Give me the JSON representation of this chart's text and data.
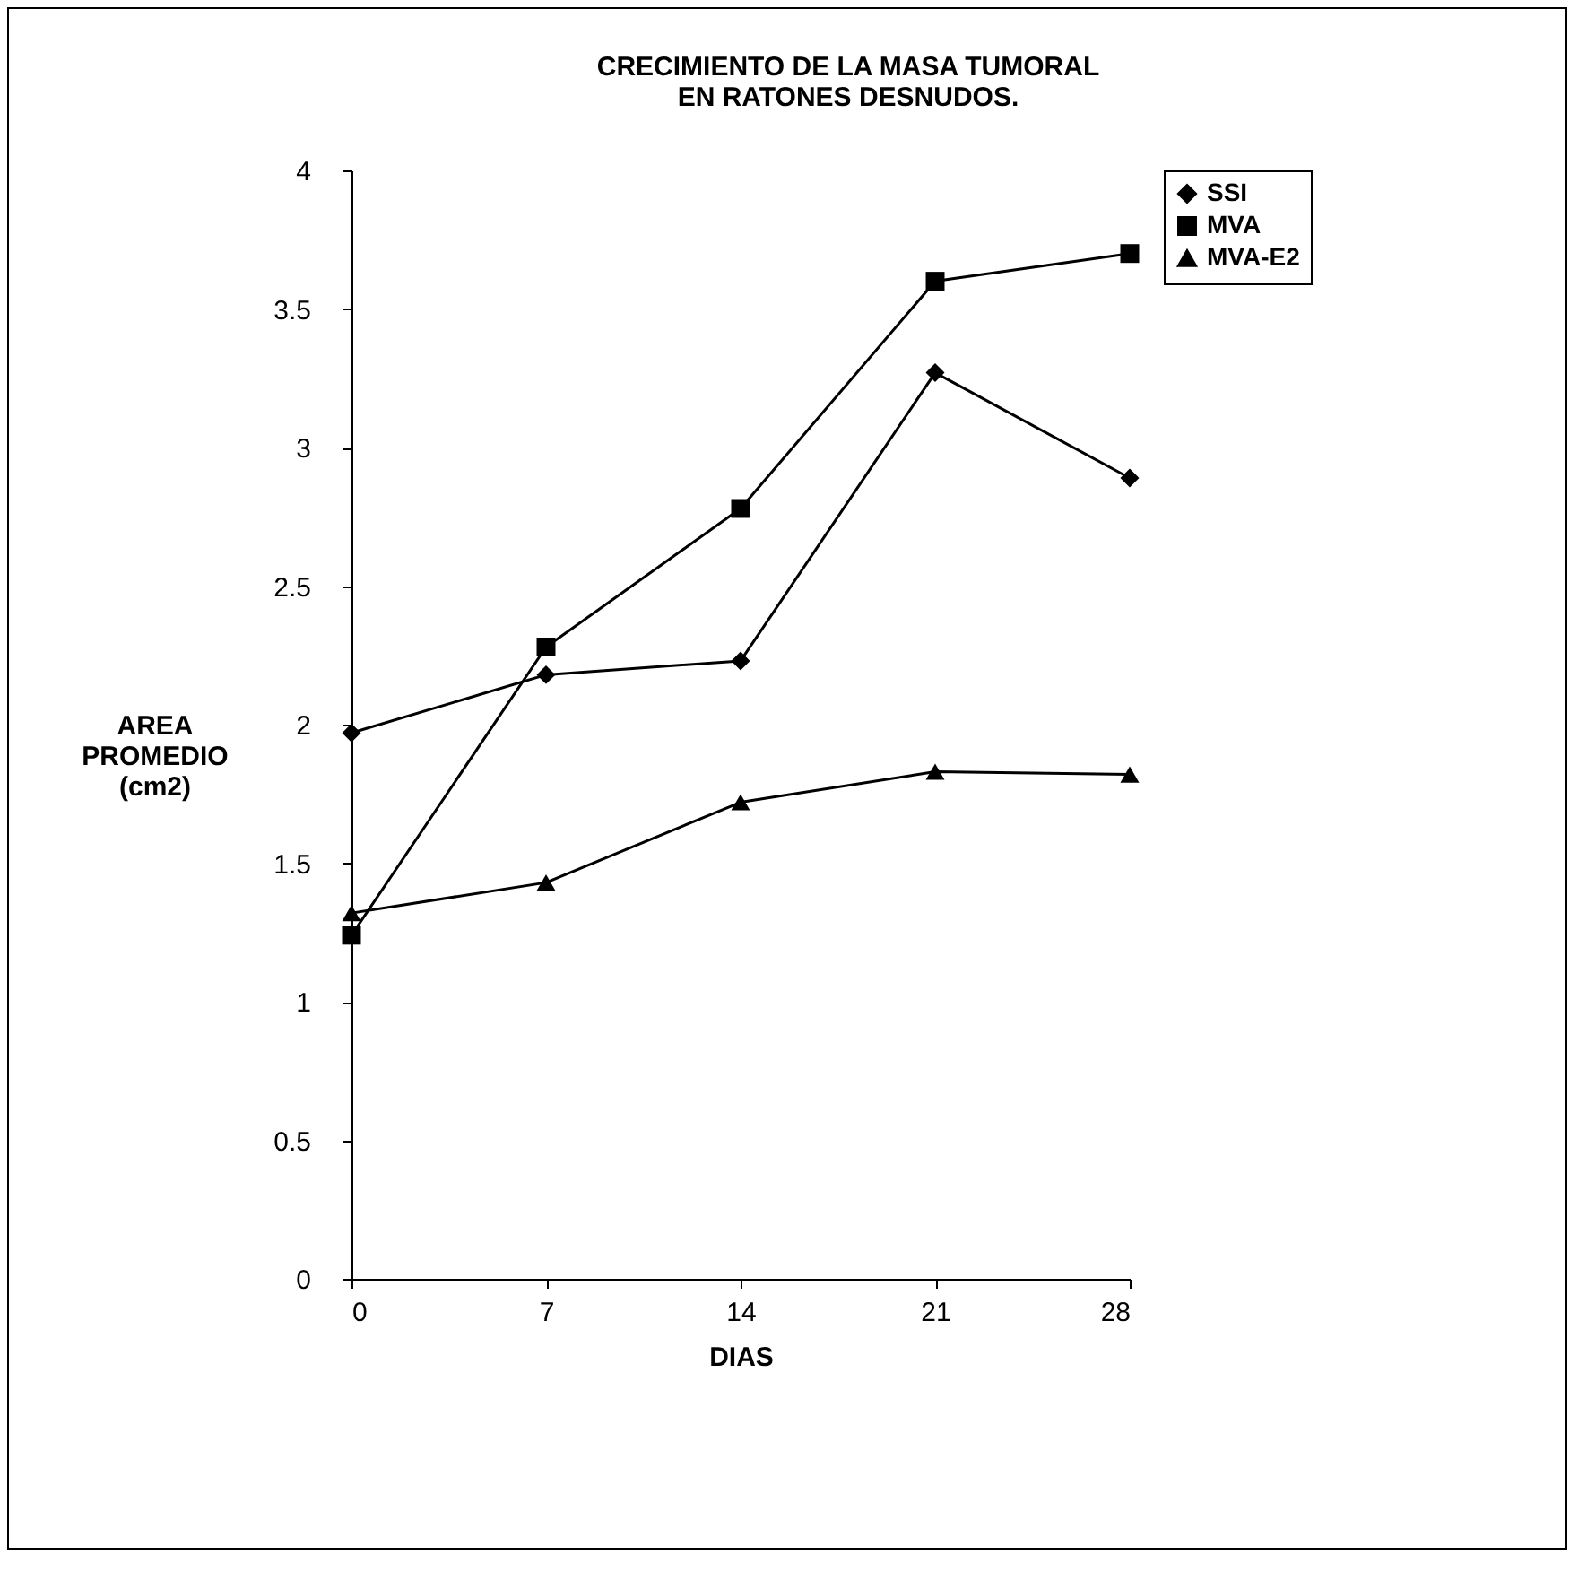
{
  "chart_data": {
    "type": "line",
    "title": "CRECIMIENTO DE LA MASA TUMORAL\nEN RATONES DESNUDOS.",
    "xlabel": "DIAS",
    "ylabel": "AREA\nPROMEDIO\n(cm2)",
    "x": [
      0,
      7,
      14,
      21,
      28
    ],
    "series": [
      {
        "name": "SSI",
        "color": "#000000",
        "marker": "diamond",
        "values": [
          1.97,
          2.18,
          2.23,
          3.27,
          2.89
        ]
      },
      {
        "name": "MVA",
        "color": "#000000",
        "marker": "square",
        "values": [
          1.24,
          2.28,
          2.78,
          3.6,
          3.7
        ]
      },
      {
        "name": "MVA-E2",
        "color": "#000000",
        "marker": "triangle",
        "values": [
          1.32,
          1.43,
          1.72,
          1.83,
          1.82
        ]
      }
    ],
    "xlim": [
      0,
      28
    ],
    "xticks": [
      0,
      7,
      14,
      21,
      28
    ],
    "ylim": [
      0,
      4
    ],
    "yticks": [
      0,
      0.5,
      1,
      1.5,
      2,
      2.5,
      3,
      3.5,
      4
    ],
    "grid": false,
    "legend": "right",
    "line_style": "solid"
  }
}
